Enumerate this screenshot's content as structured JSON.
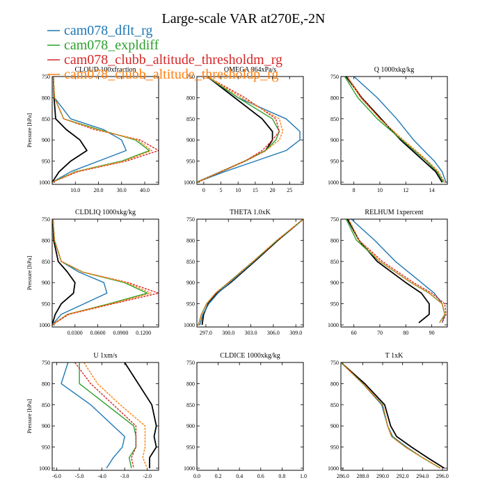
{
  "figure": {
    "title": "Large-scale VAR at270E,-2N"
  },
  "legend": [
    {
      "name": "cam078_dflt_rg",
      "color": "#1f77b4"
    },
    {
      "name": "cam078_expldiff",
      "color": "#2ca02c"
    },
    {
      "name": "cam078_clubb_altitude_thresholdm_rg",
      "color": "#d62728"
    },
    {
      "name": "cam078_clubb_altitude_thresholdp_rg",
      "color": "#ff7f0e"
    }
  ],
  "chart_data": [
    {
      "type": "line",
      "title": "CLOUD 100xfraction",
      "xlabel": "",
      "ylabel": "Pressure [hPa]",
      "xlim": [
        0,
        46
      ],
      "ylim": [
        1005,
        750
      ],
      "yticks": [
        750,
        800,
        850,
        900,
        950,
        1000
      ],
      "xticks": [
        10,
        20,
        30,
        40
      ],
      "xticklabels": [
        "10.0",
        "20.0",
        "30.0",
        "40.0"
      ],
      "y": [
        750,
        800,
        850,
        875,
        900,
        925,
        950,
        975,
        1000
      ],
      "series": [
        {
          "color": "#000000",
          "x": [
            0.5,
            0.8,
            1.5,
            6,
            12,
            15,
            8,
            3,
            0
          ]
        },
        {
          "color": "#1f77b4",
          "x": [
            0.5,
            1,
            8,
            22,
            30,
            32,
            20,
            8,
            0
          ]
        },
        {
          "color": "#2ca02c",
          "x": [
            0.5,
            1,
            5,
            20,
            36,
            42,
            30,
            10,
            0
          ]
        },
        {
          "color": "#d62728",
          "x": [
            0.5,
            1,
            5,
            18,
            38,
            46,
            32,
            11,
            0
          ],
          "dash": true
        },
        {
          "color": "#ff7f0e",
          "x": [
            0.5,
            1,
            5,
            19,
            37,
            43,
            31,
            10,
            0
          ],
          "dash": true
        }
      ]
    },
    {
      "type": "line",
      "title": "OMEGA 864xPa/s",
      "xlabel": "",
      "ylabel": "",
      "xlim": [
        -2,
        29
      ],
      "ylim": [
        1005,
        750
      ],
      "yticks": [
        750,
        800,
        850,
        900,
        950,
        1000
      ],
      "xticks": [
        0,
        5,
        10,
        15,
        20,
        25
      ],
      "xticklabels": [
        "0",
        "5",
        "10",
        "15",
        "20",
        "25"
      ],
      "y": [
        750,
        800,
        850,
        880,
        900,
        925,
        950,
        975,
        1000
      ],
      "series": [
        {
          "color": "#000000",
          "x": [
            1,
            9,
            17,
            20,
            20,
            18,
            12,
            5,
            -2
          ]
        },
        {
          "color": "#1f77b4",
          "x": [
            1,
            10,
            24,
            28,
            28,
            24,
            15,
            6,
            -2
          ]
        },
        {
          "color": "#2ca02c",
          "x": [
            1,
            10,
            20,
            22,
            21,
            18,
            12,
            5,
            -2
          ]
        },
        {
          "color": "#d62728",
          "x": [
            1,
            12,
            21,
            22,
            20,
            17,
            12,
            5,
            -2
          ],
          "dash": true
        },
        {
          "color": "#ff7f0e",
          "x": [
            1,
            11,
            22,
            23,
            22,
            18,
            12,
            5,
            -2
          ],
          "dash": true
        }
      ]
    },
    {
      "type": "line",
      "title": "Q  1000xkg/kg",
      "xlabel": "",
      "ylabel": "",
      "xlim": [
        7,
        15.2
      ],
      "ylim": [
        1005,
        750
      ],
      "yticks": [
        750,
        800,
        850,
        900,
        950,
        1000
      ],
      "xticks": [
        8,
        10,
        12,
        14
      ],
      "xticklabels": [
        "8",
        "10",
        "12",
        "14"
      ],
      "y": [
        750,
        800,
        850,
        900,
        950,
        975,
        1000
      ],
      "series": [
        {
          "color": "#000000",
          "x": [
            7.4,
            8.6,
            10.1,
            11.6,
            13.4,
            14.3,
            14.8
          ]
        },
        {
          "color": "#1f77b4",
          "x": [
            8.0,
            9.8,
            11.3,
            12.6,
            14.2,
            14.8,
            15.1
          ]
        },
        {
          "color": "#2ca02c",
          "x": [
            7.3,
            8.3,
            9.8,
            11.7,
            13.6,
            14.4,
            14.9
          ]
        },
        {
          "color": "#d62728",
          "x": [
            7.5,
            8.6,
            10.0,
            11.8,
            13.7,
            14.5,
            15.0
          ],
          "dash": true
        },
        {
          "color": "#ff7f0e",
          "x": [
            7.5,
            8.5,
            10.0,
            11.8,
            13.7,
            14.5,
            15.0
          ],
          "dash": true
        }
      ]
    },
    {
      "type": "line",
      "title": "CLDLIQ  1000xkg/kg",
      "xlabel": "",
      "ylabel": "Pressure [hPa]",
      "xlim": [
        0,
        0.14
      ],
      "ylim": [
        1005,
        750
      ],
      "yticks": [
        750,
        800,
        850,
        900,
        950,
        1000
      ],
      "xticks": [
        0.03,
        0.06,
        0.09,
        0.12
      ],
      "xticklabels": [
        "0.0300",
        "0.0600",
        "0.0900",
        "0.1200"
      ],
      "y": [
        750,
        800,
        850,
        875,
        900,
        925,
        950,
        975,
        1000
      ],
      "series": [
        {
          "color": "#000000",
          "x": [
            0.001,
            0.002,
            0.008,
            0.02,
            0.03,
            0.028,
            0.012,
            0.004,
            0
          ]
        },
        {
          "color": "#1f77b4",
          "x": [
            0.001,
            0.003,
            0.012,
            0.035,
            0.068,
            0.072,
            0.042,
            0.012,
            0
          ]
        },
        {
          "color": "#2ca02c",
          "x": [
            0.001,
            0.003,
            0.012,
            0.04,
            0.095,
            0.125,
            0.075,
            0.02,
            0
          ]
        },
        {
          "color": "#d62728",
          "x": [
            0.001,
            0.003,
            0.012,
            0.04,
            0.1,
            0.14,
            0.08,
            0.022,
            0
          ],
          "dash": true
        },
        {
          "color": "#ff7f0e",
          "x": [
            0.001,
            0.003,
            0.012,
            0.04,
            0.098,
            0.13,
            0.078,
            0.02,
            0
          ],
          "dash": true
        }
      ]
    },
    {
      "type": "line",
      "title": "THETA  1.0xK",
      "xlabel": "",
      "ylabel": "",
      "xlim": [
        295.8,
        310
      ],
      "ylim": [
        1005,
        750
      ],
      "yticks": [
        750,
        800,
        850,
        900,
        950,
        1000
      ],
      "xticks": [
        297,
        300,
        303,
        306,
        309
      ],
      "xticklabels": [
        "297.0",
        "300.0",
        "303.0",
        "306.0",
        "309.0"
      ],
      "y": [
        750,
        800,
        850,
        900,
        925,
        950,
        975,
        1000
      ],
      "series": [
        {
          "color": "#000000",
          "x": [
            310,
            306.6,
            303.5,
            300.3,
            298.5,
            297.3,
            296.7,
            296.5
          ]
        },
        {
          "color": "#1f77b4",
          "x": [
            310,
            306.5,
            303.4,
            300.2,
            298.6,
            297.4,
            296.6,
            296.2
          ]
        },
        {
          "color": "#2ca02c",
          "x": [
            310,
            306.5,
            303.3,
            300.0,
            298.3,
            297.1,
            296.4,
            296.0
          ]
        },
        {
          "color": "#d62728",
          "x": [
            310,
            306.5,
            303.3,
            300.0,
            298.3,
            297.1,
            296.4,
            296.0
          ],
          "dash": true
        },
        {
          "color": "#ff7f0e",
          "x": [
            310,
            306.5,
            303.3,
            300.0,
            298.3,
            297.1,
            296.4,
            296.0
          ],
          "dash": true
        }
      ]
    },
    {
      "type": "line",
      "title": "RELHUM  1xpercent",
      "xlabel": "",
      "ylabel": "",
      "xlim": [
        55,
        96
      ],
      "ylim": [
        1005,
        750
      ],
      "yticks": [
        750,
        800,
        850,
        900,
        950,
        1000
      ],
      "xticks": [
        60,
        70,
        80,
        90
      ],
      "xticklabels": [
        "60",
        "70",
        "80",
        "90"
      ],
      "y": [
        750,
        800,
        850,
        900,
        925,
        950,
        975,
        995
      ],
      "series": [
        {
          "color": "#000000",
          "x": [
            57.5,
            62,
            69,
            80,
            86,
            89,
            89,
            85
          ]
        },
        {
          "color": "#1f77b4",
          "x": [
            59,
            68,
            76,
            86,
            91,
            94,
            95,
            94
          ]
        },
        {
          "color": "#2ca02c",
          "x": [
            57,
            61,
            70,
            82,
            89,
            94,
            95,
            93
          ]
        },
        {
          "color": "#d62728",
          "x": [
            58,
            62,
            71,
            83,
            90,
            95,
            95.5,
            94
          ],
          "dash": true
        },
        {
          "color": "#ff7f0e",
          "x": [
            58,
            62,
            70,
            82,
            89,
            94,
            95,
            93
          ],
          "dash": true
        }
      ]
    },
    {
      "type": "line",
      "title": "U  1xm/s",
      "xlabel": "",
      "ylabel": "Pressure [hPa]",
      "xlim": [
        -6.2,
        -1.5
      ],
      "ylim": [
        1005,
        750
      ],
      "yticks": [
        750,
        800,
        850,
        900,
        950,
        1000
      ],
      "xticks": [
        -6,
        -5,
        -4,
        -3,
        -2
      ],
      "xticklabels": [
        "-6.0",
        "-5.0",
        "-4.0",
        "-3.0",
        "-2.0"
      ],
      "y": [
        750,
        800,
        850,
        900,
        925,
        950,
        975,
        1000
      ],
      "series": [
        {
          "color": "#000000",
          "x": [
            -3.0,
            -2.4,
            -1.8,
            -1.6,
            -1.7,
            -1.6,
            -1.9,
            -1.9
          ]
        },
        {
          "color": "#1f77b4",
          "x": [
            -5.5,
            -5.8,
            -4.5,
            -3.5,
            -3.0,
            -3.1,
            -3.5,
            -3.8
          ]
        },
        {
          "color": "#2ca02c",
          "x": [
            -5.0,
            -5.0,
            -3.8,
            -2.6,
            -2.5,
            -2.5,
            -2.8,
            -2.7
          ]
        },
        {
          "color": "#d62728",
          "x": [
            -5.2,
            -4.5,
            -3.5,
            -2.5,
            -2.5,
            -2.5,
            -2.7,
            -2.6
          ],
          "dash": true
        },
        {
          "color": "#ff7f0e",
          "x": [
            -4.8,
            -4.2,
            -3.2,
            -2.1,
            -2.1,
            -2.1,
            -2.2,
            -2.0
          ],
          "dash": true
        }
      ]
    },
    {
      "type": "line",
      "title": "CLDICE  1000xkg/kg",
      "xlabel": "",
      "ylabel": "",
      "xlim": [
        0,
        1
      ],
      "ylim": [
        1005,
        750
      ],
      "yticks": [
        750,
        800,
        850,
        900,
        950,
        1000
      ],
      "xticks": [
        0,
        0.2,
        0.4,
        0.6,
        0.8,
        1.0
      ],
      "xticklabels": [
        "0.0",
        "0.2",
        "0.4",
        "0.6",
        "0.8",
        "1.0"
      ],
      "y": [],
      "series": []
    },
    {
      "type": "line",
      "title": "T  1xK",
      "xlabel": "",
      "ylabel": "",
      "xlim": [
        285.8,
        296.5
      ],
      "ylim": [
        1005,
        750
      ],
      "yticks": [
        750,
        800,
        850,
        900,
        950,
        1000
      ],
      "xticks": [
        286,
        288,
        290,
        292,
        294,
        296
      ],
      "xticklabels": [
        "286.0",
        "288.0",
        "290.0",
        "292.0",
        "294.0",
        "296.0"
      ],
      "y": [
        750,
        800,
        850,
        900,
        925,
        950,
        975,
        1000
      ],
      "series": [
        {
          "color": "#000000",
          "x": [
            285.8,
            288.2,
            290.2,
            290.8,
            291.4,
            292.9,
            294.5,
            296.2
          ]
        },
        {
          "color": "#1f77b4",
          "x": [
            285.8,
            288.0,
            289.9,
            290.5,
            291.0,
            292.4,
            294.0,
            295.8
          ]
        },
        {
          "color": "#2ca02c",
          "x": [
            285.8,
            288.0,
            290.0,
            290.5,
            290.9,
            292.3,
            294.0,
            295.8
          ]
        },
        {
          "color": "#d62728",
          "x": [
            285.8,
            288.0,
            290.0,
            290.5,
            290.9,
            292.3,
            294.0,
            295.8
          ],
          "dash": true
        },
        {
          "color": "#ff7f0e",
          "x": [
            285.8,
            288.0,
            290.0,
            290.5,
            290.9,
            292.3,
            294.0,
            295.8
          ],
          "dash": true
        }
      ]
    }
  ]
}
